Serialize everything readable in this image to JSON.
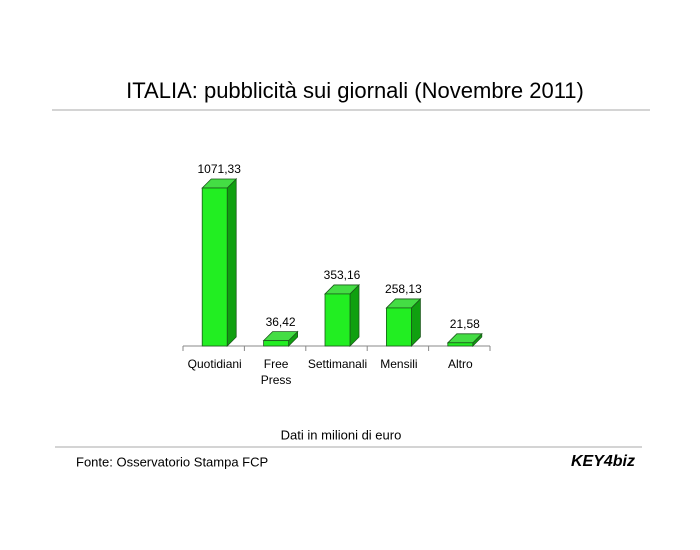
{
  "chart_data": {
    "type": "bar3d",
    "title": "ITALIA: pubblicità sui giornali (Novembre 2011)",
    "categories": [
      "Quotidiani",
      "Free Press",
      "Settimanali",
      "Mensili",
      "Altro"
    ],
    "values": [
      1071.33,
      36.42,
      353.16,
      258.13,
      21.58
    ],
    "value_labels": [
      "1071,33",
      "36,42",
      "353,16",
      "258,13",
      "21,58"
    ],
    "color": "#22ee22",
    "note": "Dati in milioni di euro",
    "source": "Fonte: Osservatorio Stampa FCP",
    "logo": "KEY4biz"
  }
}
